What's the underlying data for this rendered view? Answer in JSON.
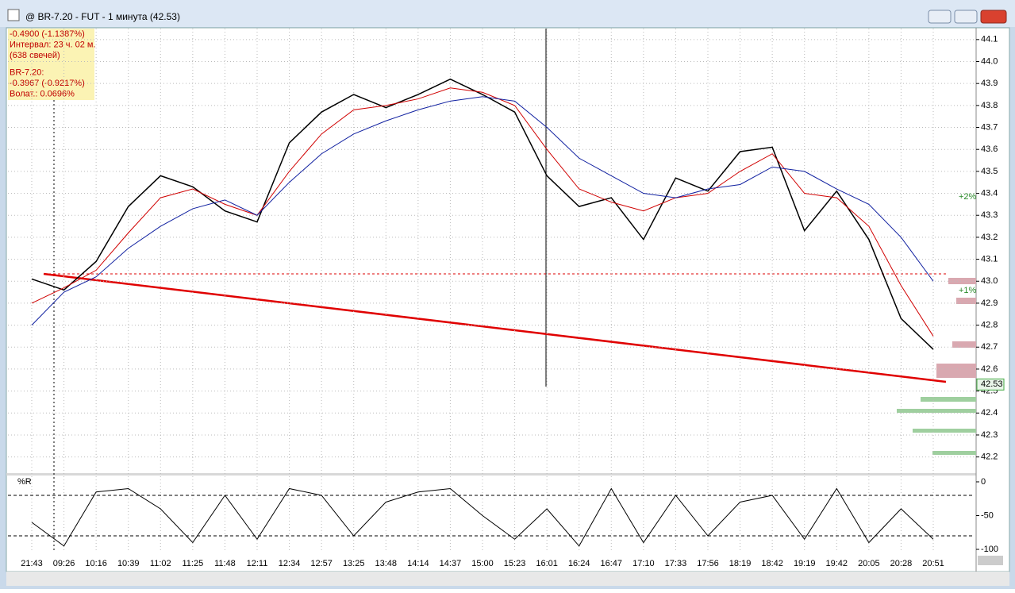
{
  "window_title": "@ BR-7.20 - FUT - 1 минута (42.53)",
  "info_box": [
    "-0.4900 (-1.1387%)",
    "Интервал: 23 ч. 02 м.",
    "(638 свечей)",
    "BR-7.20:",
    "-0.3967 (-0.9217%)",
    "Волат.: 0.0696%"
  ],
  "chart_data": {
    "type": "line",
    "categories": [
      "21:43",
      "09:26",
      "10:16",
      "10:39",
      "11:02",
      "11:25",
      "11:48",
      "12:11",
      "12:34",
      "12:57",
      "13:25",
      "13:48",
      "14:14",
      "14:37",
      "15:00",
      "15:23",
      "16:01",
      "16:24",
      "16:47",
      "17:10",
      "17:33",
      "17:56",
      "18:19",
      "18:42",
      "19:19",
      "19:42",
      "20:05",
      "20:28",
      "20:51"
    ],
    "series": [
      {
        "color": "#000000",
        "values": [
          43.01,
          42.96,
          43.09,
          43.34,
          43.48,
          43.43,
          43.32,
          43.27,
          43.63,
          43.77,
          43.85,
          43.79,
          43.85,
          43.92,
          43.85,
          43.77,
          43.48,
          43.34,
          43.38,
          43.19,
          43.47,
          43.41,
          43.59,
          43.61,
          43.23,
          43.41,
          43.19,
          42.83,
          42.69
        ]
      },
      {
        "color": "#d00000",
        "values": [
          42.9,
          42.97,
          43.05,
          43.22,
          43.38,
          43.42,
          43.35,
          43.3,
          43.5,
          43.67,
          43.78,
          43.8,
          43.83,
          43.88,
          43.86,
          43.8,
          43.6,
          43.42,
          43.36,
          43.32,
          43.38,
          43.4,
          43.5,
          43.58,
          43.4,
          43.38,
          43.25,
          42.98,
          42.75
        ]
      },
      {
        "color": "#1020a0",
        "values": [
          42.8,
          42.95,
          43.02,
          43.15,
          43.25,
          43.33,
          43.37,
          43.3,
          43.45,
          43.58,
          43.67,
          43.73,
          43.78,
          43.82,
          43.84,
          43.82,
          43.7,
          43.56,
          43.48,
          43.4,
          43.38,
          43.42,
          43.44,
          43.52,
          43.5,
          43.42,
          43.35,
          43.2,
          43.0
        ]
      }
    ],
    "ylim": [
      42.13,
      44.15
    ],
    "yticks": [
      42.2,
      42.3,
      42.4,
      42.5,
      42.6,
      42.7,
      42.8,
      42.9,
      {
        "value": 43,
        "label": "43.0"
      },
      43.1,
      43.2,
      43.3,
      43.4,
      43.5,
      43.6,
      43.7,
      43.8,
      43.9,
      {
        "value": 44,
        "label": "44.0"
      },
      44.1
    ],
    "last_price": 42.53,
    "annotations": [
      "+2%",
      "+1%"
    ],
    "grid": true,
    "indicator": {
      "title": "%R",
      "color": "#000000",
      "values": [
        -60,
        -95,
        -15,
        -10,
        -40,
        -90,
        -20,
        -85,
        -10,
        -20,
        -80,
        -30,
        -15,
        -10,
        -50,
        -85,
        -40,
        -95,
        -10,
        -90,
        -20,
        -80,
        -30,
        -20,
        -85,
        -10,
        -90,
        -40,
        -85
      ],
      "ylim": [
        -103.5,
        8.2
      ],
      "yticks": [
        0,
        -50,
        -100
      ],
      "levels": [
        -20,
        -80
      ]
    }
  }
}
